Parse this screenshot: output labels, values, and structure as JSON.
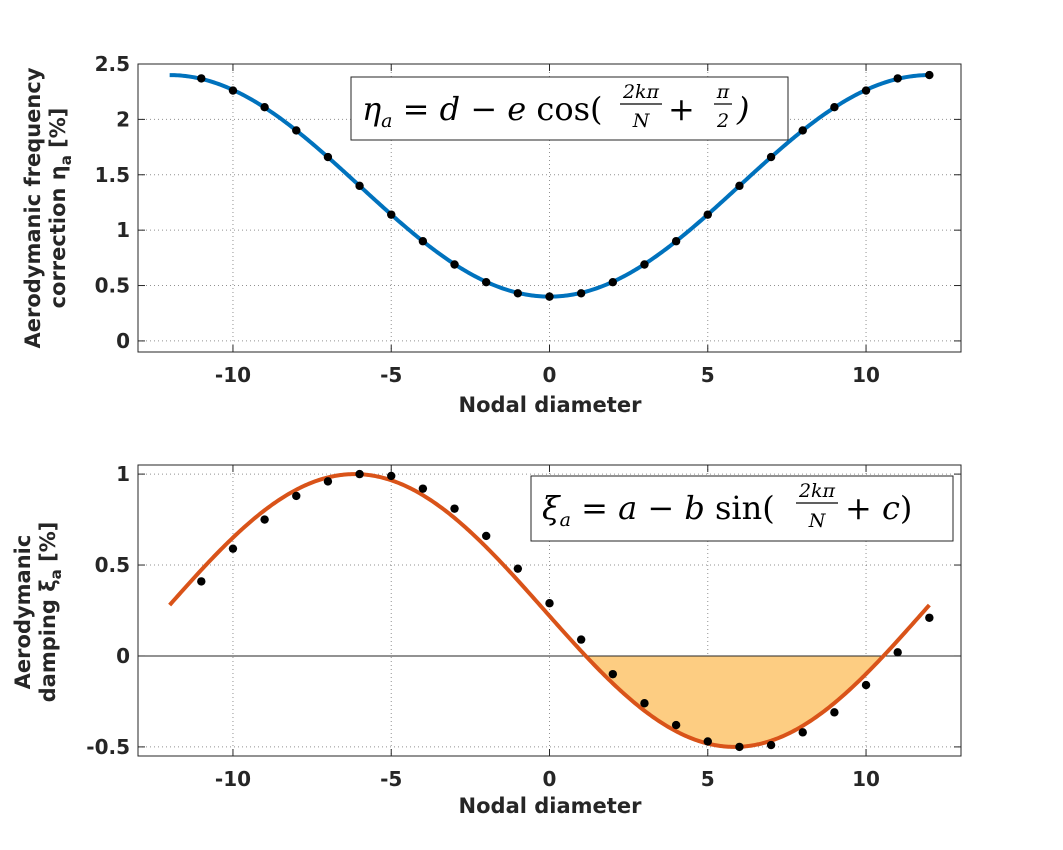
{
  "chart_data": [
    {
      "type": "line",
      "title": "",
      "xlabel": "Nodal diameter",
      "ylabel_line1": "Aerodymanic frequency",
      "ylabel_line2": "correction η",
      "ylabel_sub": "a",
      "ylabel_unit": " [%]",
      "xlim": [
        -13,
        13
      ],
      "ylim": [
        -0.1,
        2.5
      ],
      "xticks": [
        -10,
        -5,
        0,
        5,
        10
      ],
      "yticks": [
        0,
        0.5,
        1,
        1.5,
        2,
        2.5
      ],
      "xtick_labels": [
        "-10",
        "-5",
        "0",
        "5",
        "10"
      ],
      "ytick_labels": [
        "0",
        "0.5",
        "1",
        "1.5",
        "2",
        "2.5"
      ],
      "grid": true,
      "annotation": "η_a = d − e cos(2kπ/N + π/2)",
      "line_color": "#0072BD",
      "curve_x_range": [
        -12,
        12
      ],
      "markers": {
        "x": [
          -11,
          -10,
          -9,
          -8,
          -7,
          -6,
          -5,
          -4,
          -3,
          -2,
          -1,
          0,
          1,
          2,
          3,
          4,
          5,
          6,
          7,
          8,
          9,
          10,
          11,
          12
        ],
        "y": [
          2.37,
          2.26,
          2.11,
          1.9,
          1.66,
          1.4,
          1.14,
          0.9,
          0.69,
          0.53,
          0.43,
          0.4,
          0.43,
          0.53,
          0.69,
          0.9,
          1.14,
          1.4,
          1.66,
          1.9,
          2.11,
          2.26,
          2.37,
          2.4
        ]
      }
    },
    {
      "type": "line",
      "title": "",
      "xlabel": "Nodal diameter",
      "ylabel_line1": "Aerodymanic",
      "ylabel_line2": "damping ξ",
      "ylabel_sub": "a",
      "ylabel_unit": " [%]",
      "xlim": [
        -13,
        13
      ],
      "ylim": [
        -0.55,
        1.05
      ],
      "xticks": [
        -10,
        -5,
        0,
        5,
        10
      ],
      "yticks": [
        -0.5,
        0,
        0.5,
        1
      ],
      "xtick_labels": [
        "-10",
        "-5",
        "0",
        "5",
        "10"
      ],
      "ytick_labels": [
        "-0.5",
        "0",
        "0.5",
        "1"
      ],
      "grid": true,
      "annotation": "ξ_a = a − b sin(2kπ/N + c)",
      "line_color": "#D95319",
      "fill_color": "#FDCD82",
      "fill": "negative region between curve and zero line",
      "curve_x_range": [
        -12,
        12
      ],
      "markers": {
        "x": [
          -11,
          -10,
          -9,
          -8,
          -7,
          -6,
          -5,
          -4,
          -3,
          -2,
          -1,
          0,
          1,
          2,
          3,
          4,
          5,
          6,
          7,
          8,
          9,
          10,
          11,
          12
        ],
        "y": [
          0.41,
          0.59,
          0.75,
          0.88,
          0.96,
          1.0,
          0.99,
          0.92,
          0.81,
          0.66,
          0.48,
          0.29,
          0.09,
          -0.1,
          -0.26,
          -0.38,
          -0.47,
          -0.5,
          -0.49,
          -0.42,
          -0.31,
          -0.16,
          0.02,
          0.21
        ]
      }
    }
  ]
}
